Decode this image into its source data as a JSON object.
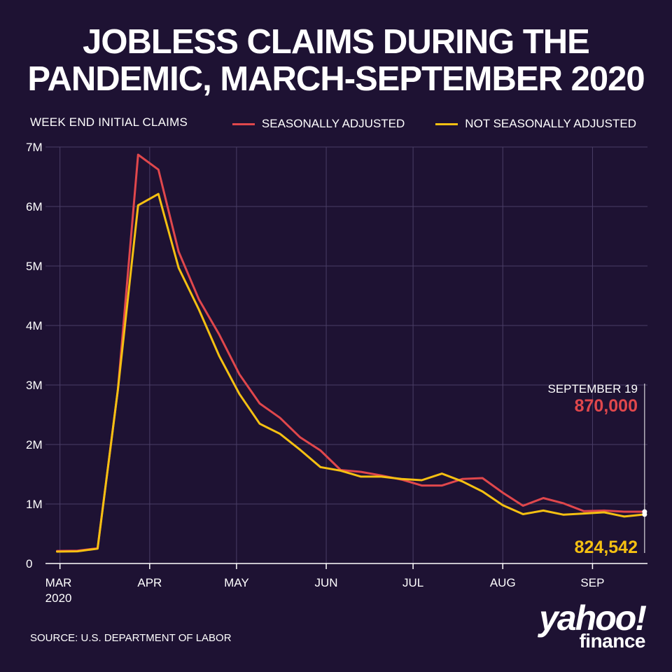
{
  "title_line1": "JOBLESS CLAIMS DURING THE",
  "title_line2": "PANDEMIC, MARCH-SEPTEMBER 2020",
  "source": "SOURCE:  U.S. DEPARTMENT OF LABOR",
  "logo": {
    "yahoo": "yahoo!",
    "finance": "finance"
  },
  "colors": {
    "background": "#1e1233",
    "seasonally_adjusted": "#e0474c",
    "not_seasonally_adjusted": "#f5c012",
    "grid": "#4a3e66"
  },
  "chart_data": {
    "type": "line",
    "title": "JOBLESS CLAIMS DURING THE PANDEMIC, MARCH-SEPTEMBER 2020",
    "ylabel": "WEEK END INITIAL CLAIMS",
    "xlabel": "",
    "legend_position": "top-right",
    "grid": true,
    "ylim": [
      0,
      7000000
    ],
    "yticks": [
      {
        "value": 0,
        "label": "0"
      },
      {
        "value": 1000000,
        "label": "1M"
      },
      {
        "value": 2000000,
        "label": "2M"
      },
      {
        "value": 3000000,
        "label": "3M"
      },
      {
        "value": 4000000,
        "label": "4M"
      },
      {
        "value": 5000000,
        "label": "5M"
      },
      {
        "value": 6000000,
        "label": "6M"
      },
      {
        "value": 7000000,
        "label": "7M"
      }
    ],
    "xticks": [
      {
        "date": "2020-03-01",
        "label": "MAR",
        "sublabel": "2020"
      },
      {
        "date": "2020-04-01",
        "label": "APR",
        "sublabel": ""
      },
      {
        "date": "2020-05-01",
        "label": "MAY",
        "sublabel": ""
      },
      {
        "date": "2020-06-01",
        "label": "JUN",
        "sublabel": ""
      },
      {
        "date": "2020-07-01",
        "label": "JUL",
        "sublabel": ""
      },
      {
        "date": "2020-08-01",
        "label": "AUG",
        "sublabel": ""
      },
      {
        "date": "2020-09-01",
        "label": "SEP",
        "sublabel": ""
      }
    ],
    "x_range": [
      "2020-02-25",
      "2020-09-20"
    ],
    "x": [
      "2020-02-29",
      "2020-03-07",
      "2020-03-14",
      "2020-03-21",
      "2020-03-28",
      "2020-04-04",
      "2020-04-11",
      "2020-04-18",
      "2020-04-25",
      "2020-05-02",
      "2020-05-09",
      "2020-05-16",
      "2020-05-23",
      "2020-05-30",
      "2020-06-06",
      "2020-06-13",
      "2020-06-20",
      "2020-06-27",
      "2020-07-04",
      "2020-07-11",
      "2020-07-18",
      "2020-07-25",
      "2020-08-01",
      "2020-08-08",
      "2020-08-15",
      "2020-08-22",
      "2020-08-29",
      "2020-09-05",
      "2020-09-12",
      "2020-09-19"
    ],
    "series": [
      {
        "name": "SEASONALLY ADJUSTED",
        "color": "#e0474c",
        "values": [
          210000,
          215000,
          255000,
          2920000,
          6870000,
          6620000,
          5240000,
          4440000,
          3850000,
          3180000,
          2690000,
          2450000,
          2120000,
          1900000,
          1570000,
          1540000,
          1480000,
          1410000,
          1310000,
          1310000,
          1420000,
          1435000,
          1190000,
          970000,
          1100000,
          1010000,
          880000,
          890000,
          870000,
          870000
        ]
      },
      {
        "name": "NOT SEASONALLY ADJUSTED",
        "color": "#f5c012",
        "values": [
          200000,
          205000,
          250000,
          2920000,
          6020000,
          6210000,
          4970000,
          4270000,
          3490000,
          2850000,
          2350000,
          2180000,
          1910000,
          1620000,
          1560000,
          1460000,
          1460000,
          1420000,
          1400000,
          1510000,
          1380000,
          1210000,
          980000,
          830000,
          890000,
          820000,
          840000,
          860000,
          790000,
          824542
        ]
      }
    ],
    "annotation": {
      "label": "SEPTEMBER 19",
      "date": "2020-09-19",
      "seasonally_adjusted_value": "870,000",
      "not_seasonally_adjusted_value": "824,542"
    }
  }
}
